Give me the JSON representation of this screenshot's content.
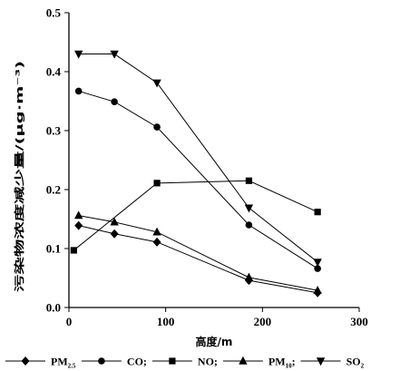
{
  "chart_data": {
    "type": "line",
    "xlabel": "高度/m",
    "ylabel": "污染物浓度减少量/(μg·m⁻³)",
    "xlim": [
      0,
      300
    ],
    "ylim": [
      0.0,
      0.5
    ],
    "xticks": [
      "0",
      "100",
      "200",
      "300"
    ],
    "yticks": [
      "0.0",
      "0.1",
      "0.2",
      "0.3",
      "0.4",
      "0.5"
    ],
    "grid": false,
    "legend_position": "bottom",
    "series": [
      {
        "name": "PM2.5",
        "name_base": "PM",
        "name_sub": "2.5",
        "name_suffix": "",
        "marker": "diamond",
        "x": [
          10,
          47,
          91,
          186,
          257
        ],
        "y": [
          0.139,
          0.125,
          0.111,
          0.046,
          0.025
        ]
      },
      {
        "name": "CO",
        "name_base": "CO;",
        "name_sub": "",
        "name_suffix": "",
        "marker": "circle",
        "x": [
          10,
          47,
          91,
          186,
          257
        ],
        "y": [
          0.367,
          0.349,
          0.306,
          0.14,
          0.066
        ]
      },
      {
        "name": "NO",
        "name_base": "NO;",
        "name_sub": "",
        "name_suffix": "",
        "marker": "square",
        "x": [
          5,
          91,
          186,
          257
        ],
        "y": [
          0.097,
          0.211,
          0.215,
          0.162
        ]
      },
      {
        "name": "PM10",
        "name_base": "PM",
        "name_sub": "10",
        "name_suffix": ";",
        "marker": "triangle-up",
        "x": [
          10,
          47,
          91,
          186,
          257
        ],
        "y": [
          0.156,
          0.145,
          0.128,
          0.051,
          0.029
        ]
      },
      {
        "name": "SO2",
        "name_base": "SO",
        "name_sub": "2",
        "name_suffix": "",
        "marker": "triangle-down",
        "x": [
          10,
          47,
          91,
          186,
          257
        ],
        "y": [
          0.43,
          0.43,
          0.381,
          0.169,
          0.077
        ]
      }
    ]
  }
}
